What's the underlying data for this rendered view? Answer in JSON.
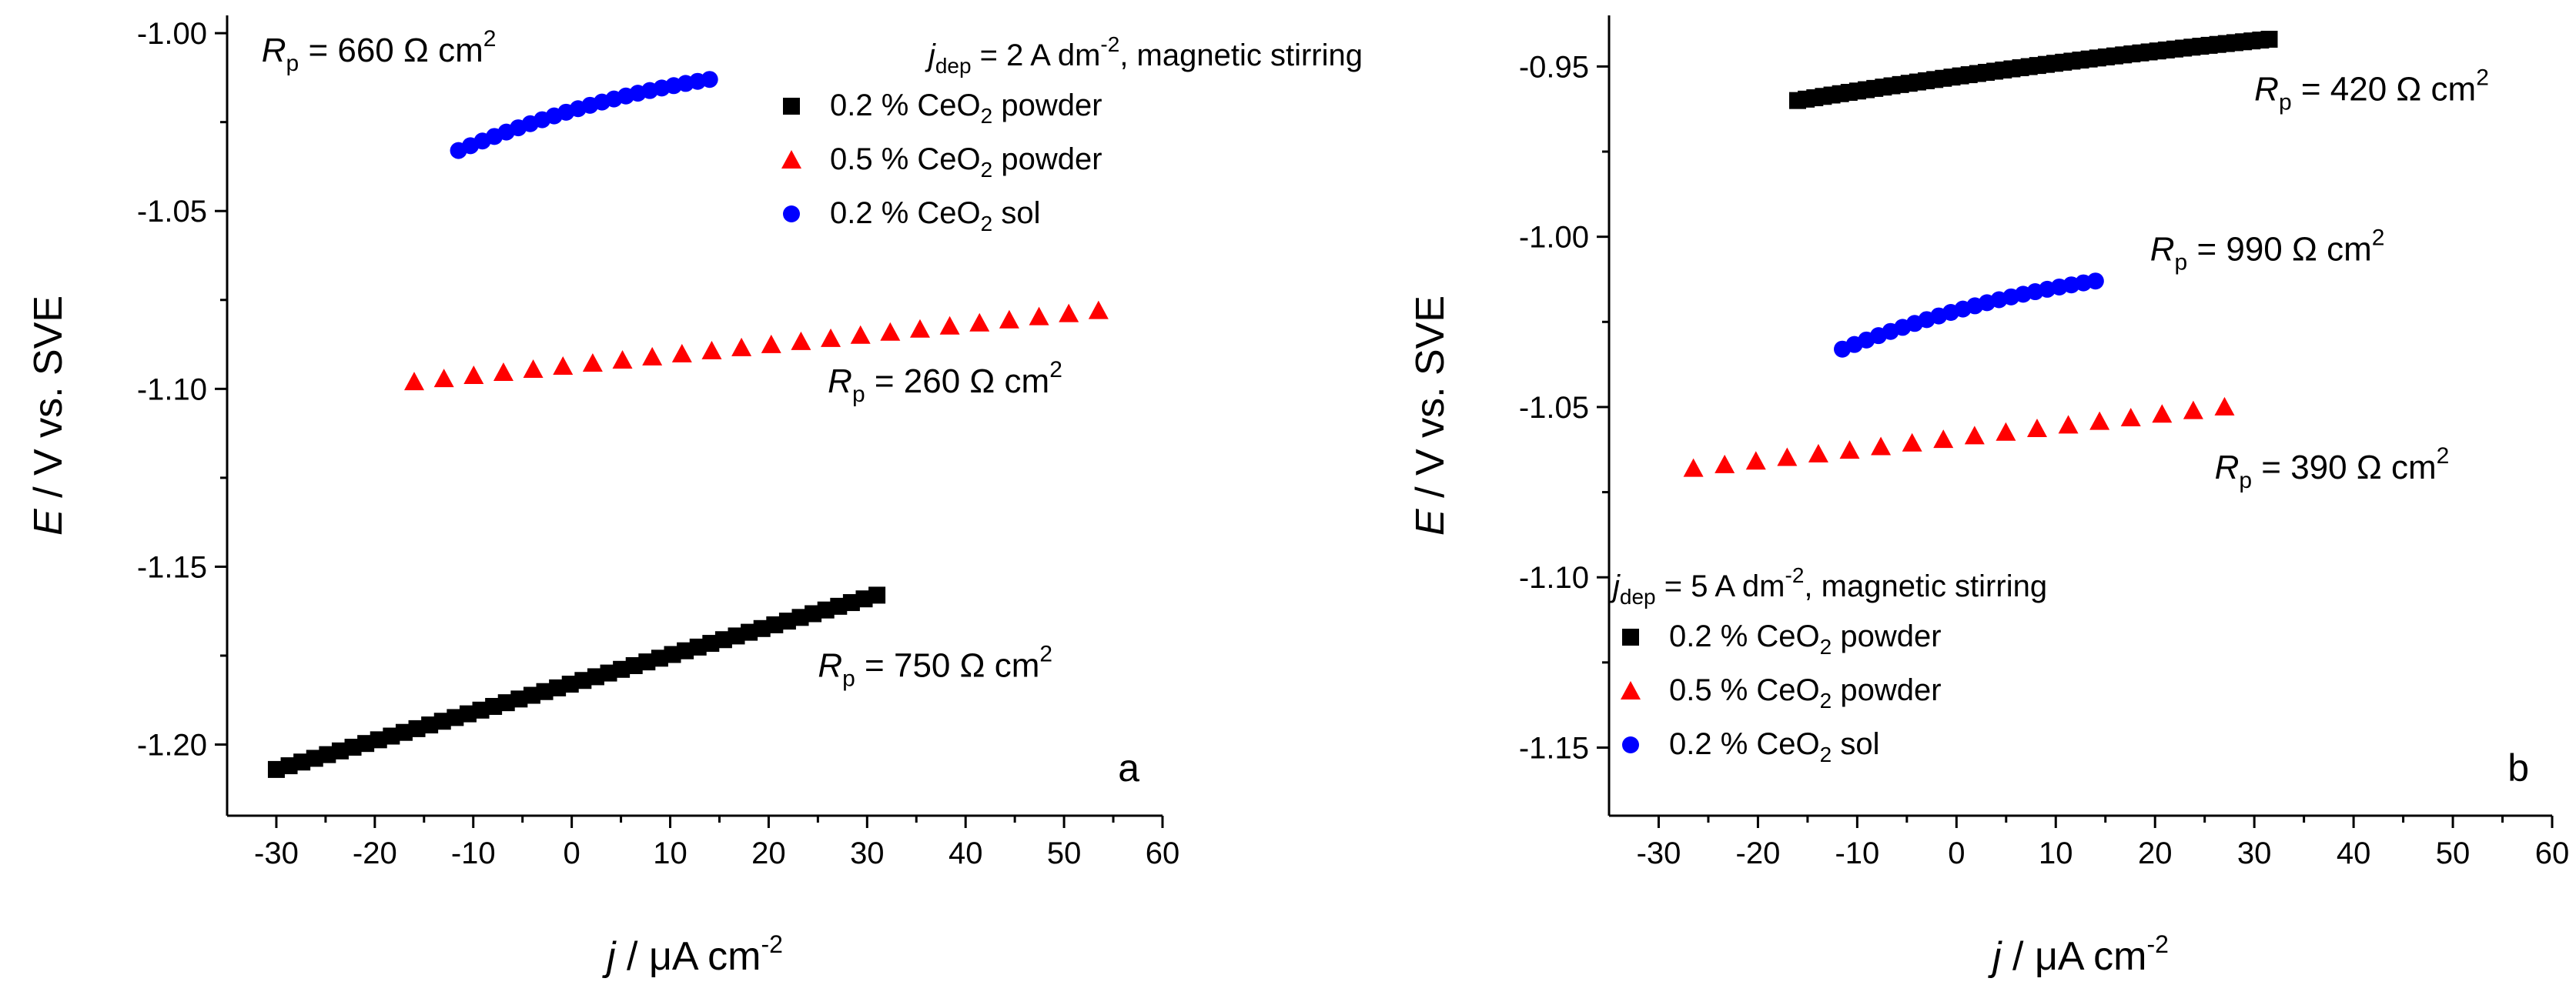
{
  "chart_data": [
    {
      "type": "scatter",
      "panel_label": "a",
      "xlabel": {
        "italic": "j",
        "rest": " / μA cm",
        "sup": "-2"
      },
      "ylabel": {
        "italic": "E",
        "rest": " / V vs. SVE"
      },
      "xlim": [
        -35,
        60
      ],
      "ylim": [
        -1.22,
        -0.995
      ],
      "xticks": [
        -30,
        -20,
        -10,
        0,
        10,
        20,
        30,
        40,
        50,
        60
      ],
      "xtick_labels": [
        "-30",
        "-20",
        "-10",
        "0",
        "10",
        "20",
        "30",
        "40",
        "50",
        "60"
      ],
      "yticks": [
        -1.2,
        -1.15,
        -1.1,
        -1.05,
        -1.0
      ],
      "ytick_labels": [
        "-1.20",
        "-1.15",
        "-1.10",
        "-1.05",
        "-1.00"
      ],
      "legend": {
        "title_parts": {
          "italic": "j",
          "sub": "dep",
          "rest": " = 2 A dm",
          "sup": "-2",
          "tail": ", magnetic stirring"
        },
        "position": "top-right",
        "entries": [
          {
            "marker": "square",
            "color": "#000000",
            "pre": "0.2 % CeO",
            "sub": "2",
            "post": " powder"
          },
          {
            "marker": "triangle",
            "color": "#ff0000",
            "pre": "0.5 % CeO",
            "sub": "2",
            "post": " powder"
          },
          {
            "marker": "circle",
            "color": "#0000ff",
            "pre": "0.2 % CeO",
            "sub": "2",
            "post": " sol"
          }
        ]
      },
      "series": [
        {
          "name": "0.2 % CeO2 powder",
          "marker": "square",
          "color": "#000000",
          "x_start": -30,
          "x_end": 31,
          "y_start": -1.207,
          "y_end": -1.158,
          "count": 48
        },
        {
          "name": "0.5 % CeO2 powder",
          "marker": "triangle",
          "color": "#ff0000",
          "x_start": -16,
          "x_end": 53.5,
          "y_start": -1.098,
          "y_end": -1.078,
          "count": 24
        },
        {
          "name": "0.2 % CeO2 sol",
          "marker": "circle",
          "color": "#0000ff",
          "x_start": -11.5,
          "x_end": 14,
          "y_start": -1.033,
          "y_end": -1.013,
          "count": 22,
          "curve": 0.45
        }
      ],
      "annotations": [
        {
          "pre": "R",
          "sub": "p",
          "value": " = 660 Ω cm",
          "sup": "2",
          "x": -31.5,
          "y": -1.008
        },
        {
          "pre": "R",
          "sub": "p",
          "value": " = 260 Ω cm",
          "sup": "2",
          "x": 26,
          "y": -1.101
        },
        {
          "pre": "R",
          "sub": "p",
          "value": " = 750 Ω cm",
          "sup": "2",
          "x": 25,
          "y": -1.181
        }
      ]
    },
    {
      "type": "scatter",
      "panel_label": "b",
      "xlabel": {
        "italic": "j",
        "rest": " / μA cm",
        "sup": "-2"
      },
      "ylabel": {
        "italic": "E",
        "rest": " / V vs. SVE"
      },
      "xlim": [
        -35,
        60
      ],
      "ylim": [
        -1.17,
        -0.935
      ],
      "xticks": [
        -30,
        -20,
        -10,
        0,
        10,
        20,
        30,
        40,
        50,
        60
      ],
      "xtick_labels": [
        "-30",
        "-20",
        "-10",
        "0",
        "10",
        "20",
        "30",
        "40",
        "50",
        "60"
      ],
      "yticks": [
        -1.15,
        -1.1,
        -1.05,
        -1.0,
        -0.95
      ],
      "ytick_labels": [
        "-1.15",
        "-1.10",
        "-1.05",
        "-1.00",
        "-0.95"
      ],
      "legend": {
        "title_parts": {
          "italic": "j",
          "sub": "dep",
          "rest": " = 5 A dm",
          "sup": "-2",
          "tail": ", magnetic stirring"
        },
        "position": "bottom-left",
        "entries": [
          {
            "marker": "square",
            "color": "#000000",
            "pre": "0.2 % CeO",
            "sub": "2",
            "post": " powder"
          },
          {
            "marker": "triangle",
            "color": "#ff0000",
            "pre": "0.5 % CeO",
            "sub": "2",
            "post": " powder"
          },
          {
            "marker": "circle",
            "color": "#0000ff",
            "pre": "0.2 % CeO",
            "sub": "2",
            "post": " sol"
          }
        ]
      },
      "series": [
        {
          "name": "0.2 % CeO2 powder",
          "marker": "square",
          "color": "#000000",
          "x_start": -16,
          "x_end": 31.5,
          "y_start": -0.96,
          "y_end": -0.942,
          "count": 56,
          "curve": 0.25
        },
        {
          "name": "0.5 % CeO2 powder",
          "marker": "triangle",
          "color": "#ff0000",
          "x_start": -26.5,
          "x_end": 27,
          "y_start": -1.068,
          "y_end": -1.05,
          "count": 18
        },
        {
          "name": "0.2 % CeO2 sol",
          "marker": "circle",
          "color": "#0000ff",
          "x_start": -11.5,
          "x_end": 14,
          "y_start": -1.033,
          "y_end": -1.013,
          "count": 22,
          "curve": 0.45
        }
      ],
      "annotations": [
        {
          "pre": "R",
          "sub": "p",
          "value": " = 420 Ω cm",
          "sup": "2",
          "x": 30,
          "y": -0.96
        },
        {
          "pre": "R",
          "sub": "p",
          "value": " = 990 Ω cm",
          "sup": "2",
          "x": 19.5,
          "y": -1.007
        },
        {
          "pre": "R",
          "sub": "p",
          "value": " = 390 Ω cm",
          "sup": "2",
          "x": 26,
          "y": -1.071
        }
      ]
    }
  ]
}
